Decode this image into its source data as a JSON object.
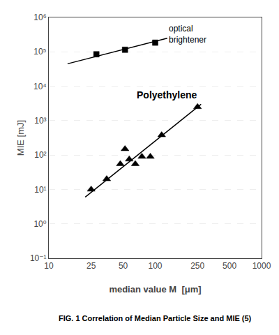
{
  "chart_data": {
    "type": "scatter",
    "log": true,
    "xlabel": "median value M  [μm]",
    "ylabel": "MIE [mJ]",
    "caption": "FIG. 1 Correlation of Median Particle Size and MIE (5)",
    "xlim": [
      10,
      1000
    ],
    "ylim": [
      0.1,
      1000000
    ],
    "xticks": [
      10,
      25,
      50,
      100,
      250,
      500,
      1000
    ],
    "yticks": [
      {
        "value": 0.1,
        "label": "10⁻¹"
      },
      {
        "value": 1,
        "label": "10⁰"
      },
      {
        "value": 10,
        "label": "10¹"
      },
      {
        "value": 100,
        "label": "10²"
      },
      {
        "value": 1000,
        "label": "10³"
      },
      {
        "value": 10000,
        "label": "10⁴"
      },
      {
        "value": 100000,
        "label": "10⁵"
      },
      {
        "value": 1000000,
        "label": "10⁶"
      }
    ],
    "grid": "y",
    "series": [
      {
        "type": "line",
        "color": "#000000",
        "x": [
          22,
          270
        ],
        "values": [
          6,
          3000
        ]
      },
      {
        "type": "scatter",
        "marker": "triangle-up",
        "color": "#000000",
        "x": [
          25,
          35,
          47,
          52,
          57,
          65,
          75,
          90,
          115,
          250
        ],
        "values": [
          10,
          20,
          55,
          150,
          75,
          55,
          90,
          90,
          380,
          2500
        ]
      },
      {
        "type": "line",
        "color": "#000000",
        "x": [
          15,
          130
        ],
        "values": [
          45000,
          250000
        ]
      },
      {
        "type": "scatter",
        "marker": "square",
        "color": "#000000",
        "x": [
          28,
          52,
          100
        ],
        "values": [
          85000,
          115000,
          185000
        ]
      }
    ],
    "annotations": [
      {
        "text": "Polyethylene",
        "x": 65,
        "y": 3500,
        "color": "#000000"
      },
      {
        "text": "optical\nbrightener",
        "x": 130,
        "y": 320000,
        "color": "#000000"
      }
    ]
  }
}
